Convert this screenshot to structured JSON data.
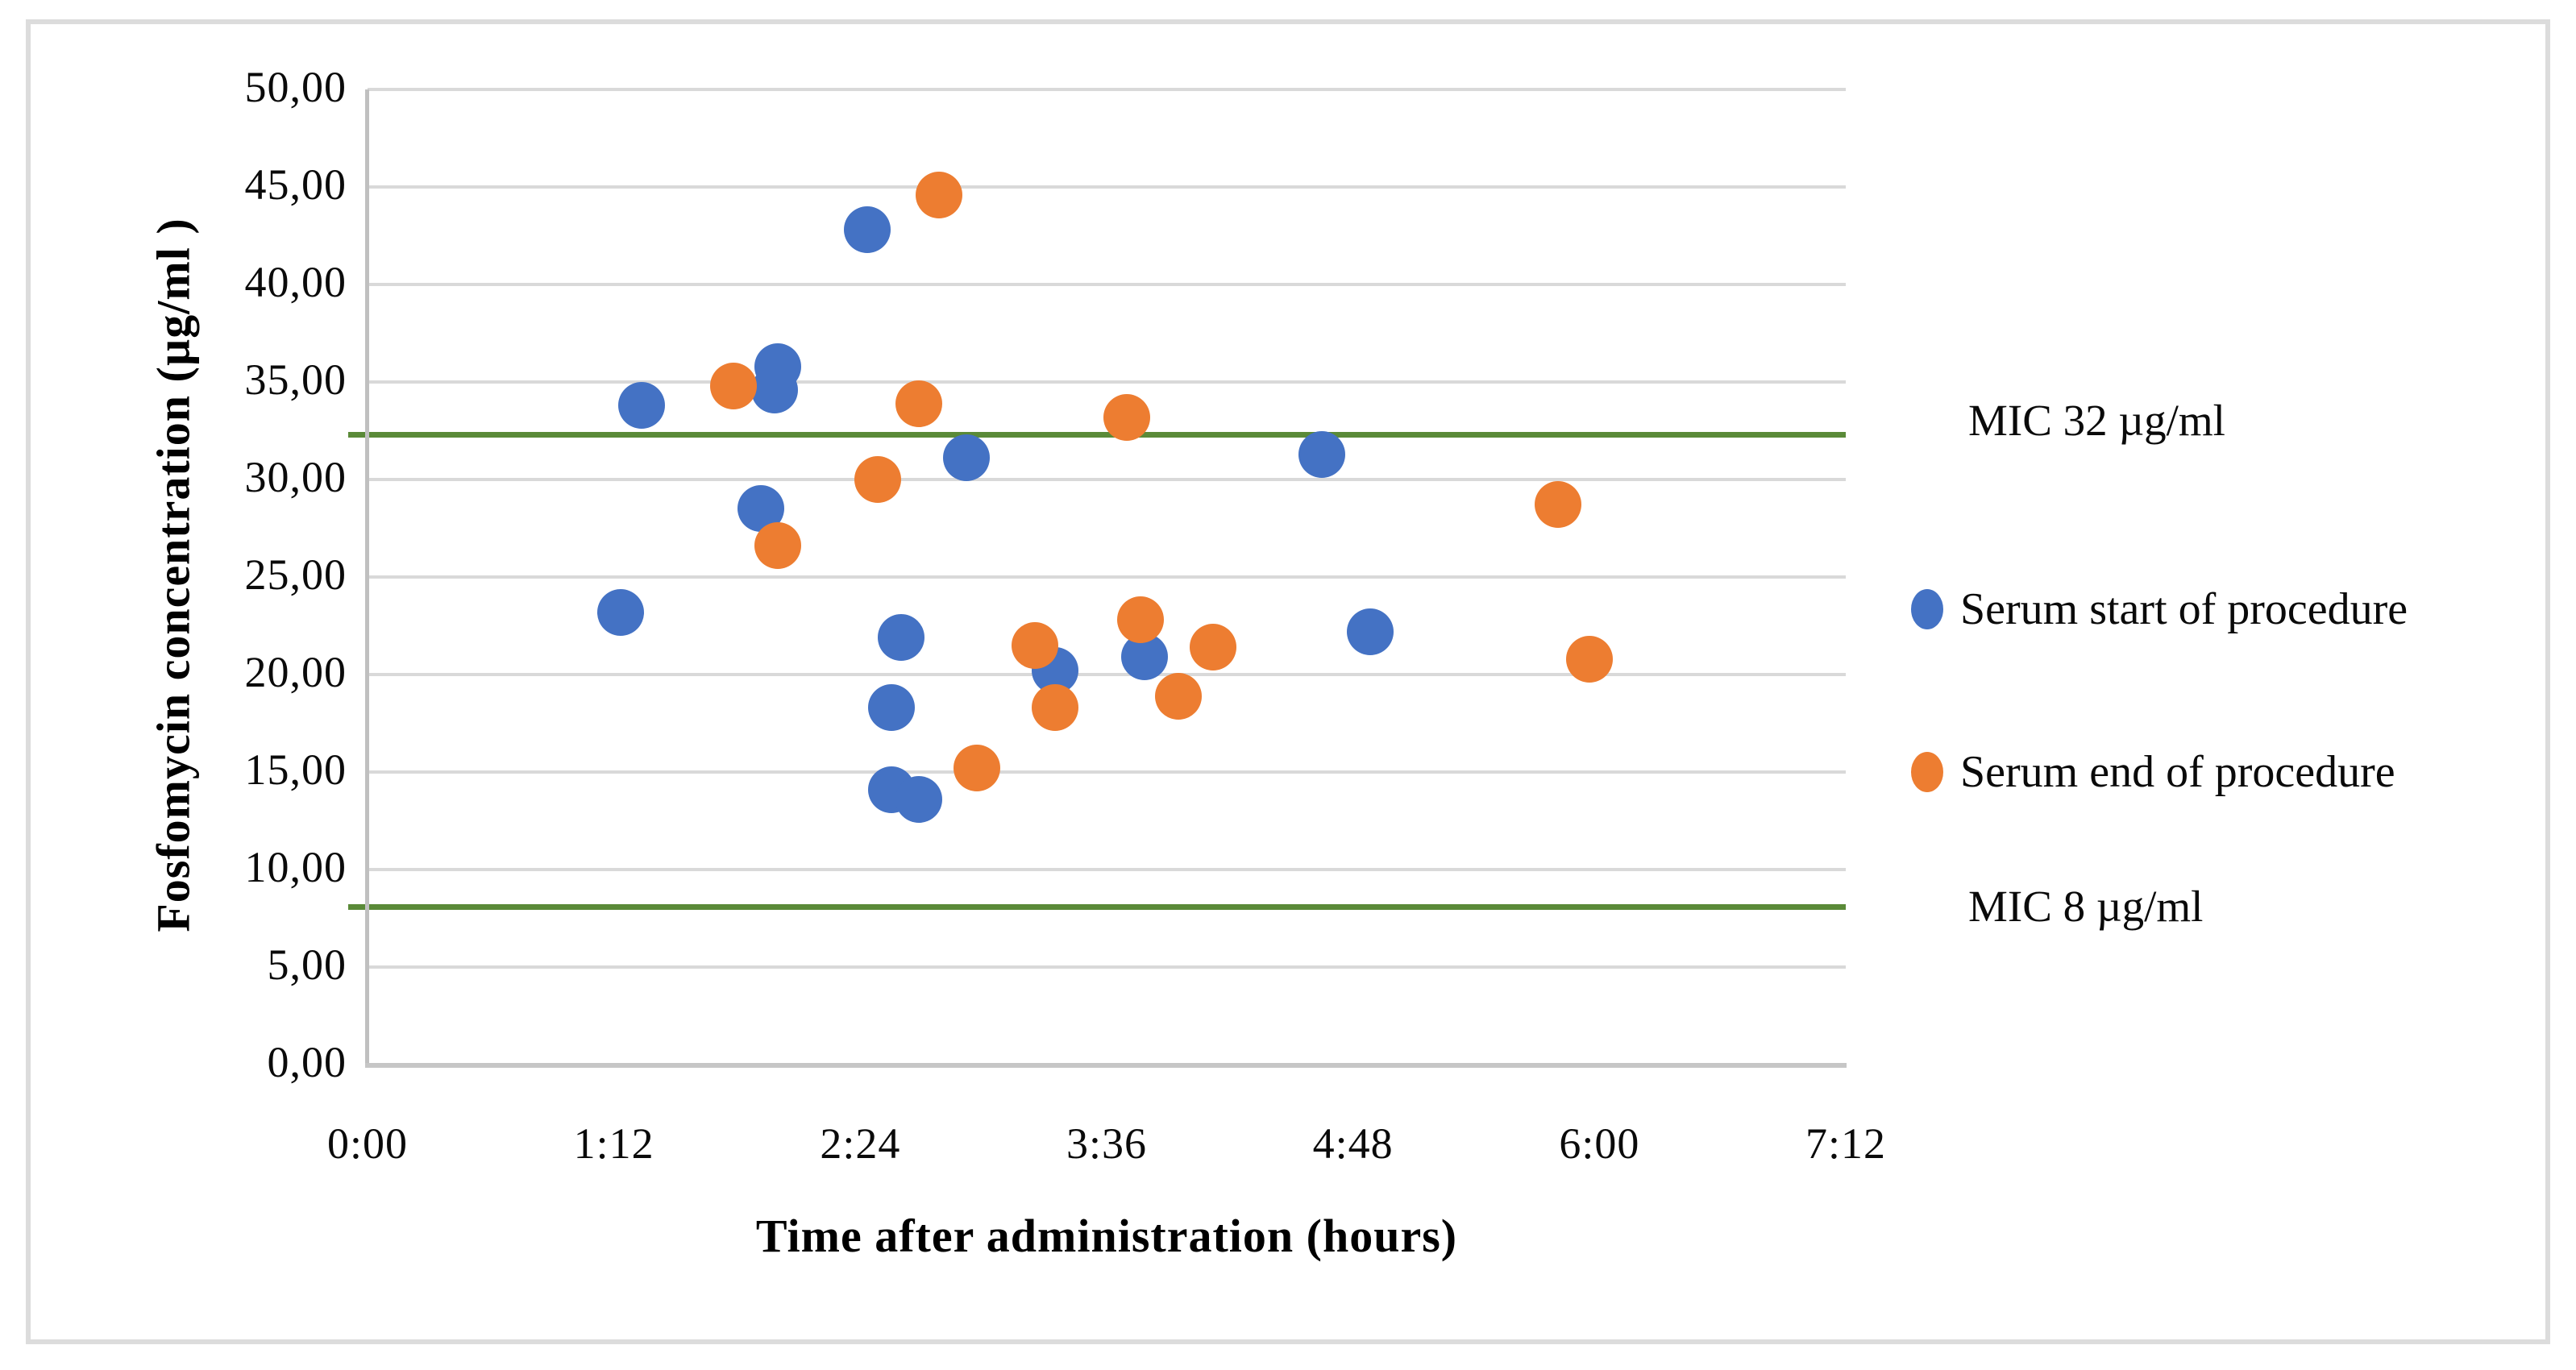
{
  "chart_data": {
    "type": "scatter",
    "title": "",
    "xlabel": "Time after administration (hours)",
    "ylabel": "Fosfomycin concentration (µg/ml )",
    "x_ticks": [
      "0:00",
      "1:12",
      "2:24",
      "3:36",
      "4:48",
      "6:00",
      "7:12"
    ],
    "x_tick_minutes": [
      0,
      72,
      144,
      216,
      288,
      360,
      432
    ],
    "xlim_minutes": [
      0,
      432
    ],
    "y_ticks": [
      "0,00",
      "5,00",
      "10,00",
      "15,00",
      "20,00",
      "25,00",
      "30,00",
      "35,00",
      "40,00",
      "45,00",
      "50,00"
    ],
    "ylim": [
      0,
      50
    ],
    "grid": "horizontal",
    "legend_position": "right",
    "series": [
      {
        "name": "Serum start of procedure",
        "color": "#4472C4",
        "points": [
          {
            "time": "1:14",
            "minutes": 74,
            "value": 23.2
          },
          {
            "time": "1:20",
            "minutes": 80,
            "value": 33.8
          },
          {
            "time": "1:55",
            "minutes": 115,
            "value": 28.5
          },
          {
            "time": "1:59",
            "minutes": 119,
            "value": 34.6
          },
          {
            "time": "2:00",
            "minutes": 120,
            "value": 35.8
          },
          {
            "time": "2:26",
            "minutes": 146,
            "value": 42.8
          },
          {
            "time": "2:33",
            "minutes": 153,
            "value": 18.3
          },
          {
            "time": "2:33",
            "minutes": 153,
            "value": 14.1
          },
          {
            "time": "2:36",
            "minutes": 156,
            "value": 21.9
          },
          {
            "time": "2:41",
            "minutes": 161,
            "value": 13.6
          },
          {
            "time": "2:55",
            "minutes": 175,
            "value": 31.1
          },
          {
            "time": "3:21",
            "minutes": 201,
            "value": 20.2
          },
          {
            "time": "3:47",
            "minutes": 227,
            "value": 20.9
          },
          {
            "time": "4:39",
            "minutes": 279,
            "value": 31.3
          },
          {
            "time": "4:53",
            "minutes": 293,
            "value": 22.2
          }
        ]
      },
      {
        "name": "Serum end of procedure",
        "color": "#ED7D31",
        "points": [
          {
            "time": "1:47",
            "minutes": 107,
            "value": 34.8
          },
          {
            "time": "2:00",
            "minutes": 120,
            "value": 26.6
          },
          {
            "time": "2:29",
            "minutes": 149,
            "value": 30.0
          },
          {
            "time": "2:41",
            "minutes": 161,
            "value": 33.9
          },
          {
            "time": "2:47",
            "minutes": 167,
            "value": 44.6
          },
          {
            "time": "2:58",
            "minutes": 178,
            "value": 15.2
          },
          {
            "time": "3:15",
            "minutes": 195,
            "value": 21.5
          },
          {
            "time": "3:21",
            "minutes": 201,
            "value": 18.3
          },
          {
            "time": "3:42",
            "minutes": 222,
            "value": 33.2
          },
          {
            "time": "3:46",
            "minutes": 226,
            "value": 22.8
          },
          {
            "time": "3:57",
            "minutes": 237,
            "value": 18.9
          },
          {
            "time": "4:07",
            "minutes": 247,
            "value": 21.4
          },
          {
            "time": "5:48",
            "minutes": 348,
            "value": 28.7
          },
          {
            "time": "5:57",
            "minutes": 357,
            "value": 20.8
          }
        ]
      }
    ],
    "reference_lines": [
      {
        "label": "MIC 32 µg/ml",
        "value": 32.3,
        "color": "#5a8a38"
      },
      {
        "label": "MIC 8 µg/ml",
        "value": 8.1,
        "color": "#5a8a38"
      }
    ]
  }
}
